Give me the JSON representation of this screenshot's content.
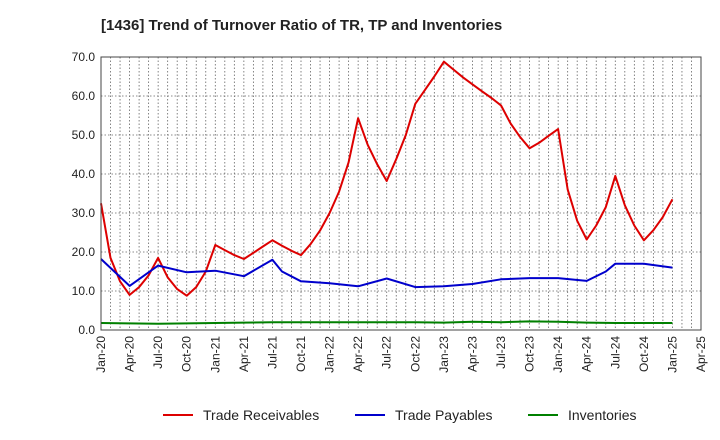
{
  "chart_data": {
    "type": "line",
    "title": "[1436]  Trend of Turnover Ratio of TR, TP and Inventories",
    "xlabel": "",
    "ylabel": "",
    "ylim": [
      0,
      70
    ],
    "yticks": [
      "0.0",
      "10.0",
      "20.0",
      "30.0",
      "40.0",
      "50.0",
      "60.0",
      "70.0"
    ],
    "xtick_labels": [
      "Jan-20",
      "Apr-20",
      "Jul-20",
      "Oct-20",
      "Jan-21",
      "Apr-21",
      "Jul-21",
      "Oct-21",
      "Jan-22",
      "Apr-22",
      "Jul-22",
      "Oct-22",
      "Jan-23",
      "Apr-23",
      "Jul-23",
      "Oct-23",
      "Jan-24",
      "Apr-24",
      "Jul-24",
      "Oct-24",
      "Jan-25",
      "Apr-25"
    ],
    "x_start": "Jan-20",
    "x_end": "Apr-25",
    "grid": true,
    "legend_position": "bottom",
    "series": [
      {
        "name": "Trade Receivables",
        "color": "#dd0000",
        "x": [
          "Jan-20",
          "Feb-20",
          "Mar-20",
          "Apr-20",
          "May-20",
          "Jun-20",
          "Jul-20",
          "Aug-20",
          "Sep-20",
          "Oct-20",
          "Nov-20",
          "Dec-20",
          "Jan-21",
          "Feb-21",
          "Mar-21",
          "Apr-21",
          "May-21",
          "Jun-21",
          "Jul-21",
          "Aug-21",
          "Sep-21",
          "Oct-21",
          "Nov-21",
          "Dec-21",
          "Jan-22",
          "Feb-22",
          "Mar-22",
          "Apr-22",
          "May-22",
          "Jun-22",
          "Jul-22",
          "Aug-22",
          "Sep-22",
          "Oct-22",
          "Nov-22",
          "Dec-22",
          "Jan-23",
          "Feb-23",
          "Mar-23",
          "Apr-23",
          "May-23",
          "Jun-23",
          "Jul-23",
          "Aug-23",
          "Sep-23",
          "Oct-23",
          "Nov-23",
          "Dec-23",
          "Jan-24",
          "Feb-24",
          "Mar-24",
          "Apr-24",
          "May-24",
          "Jun-24",
          "Jul-24",
          "Aug-24",
          "Sep-24",
          "Oct-24",
          "Nov-24",
          "Dec-24",
          "Jan-25"
        ],
        "values": [
          32.5,
          18.5,
          12.5,
          9.0,
          11.0,
          14.0,
          18.5,
          13.5,
          10.5,
          8.8,
          11.0,
          15.0,
          21.8,
          20.5,
          19.2,
          18.2,
          19.8,
          21.4,
          23.0,
          21.6,
          20.3,
          19.2,
          22.0,
          25.5,
          30.0,
          35.5,
          43.0,
          54.3,
          47.5,
          42.5,
          38.2,
          43.8,
          50.0,
          58.0,
          61.5,
          65.0,
          68.8,
          66.8,
          64.8,
          63.0,
          61.2,
          59.5,
          57.6,
          53.0,
          49.5,
          46.6,
          48.0,
          49.8,
          51.5,
          36.0,
          28.0,
          23.2,
          26.8,
          31.5,
          39.5,
          32.0,
          26.8,
          23.0,
          25.6,
          29.0,
          33.5
        ]
      },
      {
        "name": "Trade Payables",
        "color": "#0000cc",
        "x": [
          "Jan-20",
          "Apr-20",
          "Jul-20",
          "Oct-20",
          "Jan-21",
          "Apr-21",
          "Jul-21",
          "Aug-21",
          "Oct-21",
          "Jan-22",
          "Apr-22",
          "Jul-22",
          "Oct-22",
          "Jan-23",
          "Apr-23",
          "Jul-23",
          "Oct-23",
          "Jan-24",
          "Apr-24",
          "Jun-24",
          "Jul-24",
          "Oct-24",
          "Jan-25"
        ],
        "values": [
          18.2,
          11.3,
          16.5,
          14.8,
          15.2,
          13.8,
          18.0,
          15.0,
          12.5,
          12.0,
          11.2,
          13.2,
          11.0,
          11.2,
          11.8,
          13.0,
          13.3,
          13.3,
          12.6,
          15.0,
          17.0,
          17.0,
          16.0
        ]
      },
      {
        "name": "Inventories",
        "color": "#008000",
        "x": [
          "Jan-20",
          "Apr-20",
          "Jul-20",
          "Oct-20",
          "Jan-21",
          "Apr-21",
          "Jul-21",
          "Oct-21",
          "Jan-22",
          "Apr-22",
          "Jul-22",
          "Oct-22",
          "Jan-23",
          "Apr-23",
          "Jul-23",
          "Oct-23",
          "Jan-24",
          "Apr-24",
          "Jul-24",
          "Oct-24",
          "Jan-25"
        ],
        "values": [
          1.8,
          1.7,
          1.6,
          1.7,
          1.8,
          1.9,
          2.0,
          2.0,
          2.0,
          2.0,
          2.0,
          2.0,
          1.9,
          2.1,
          2.0,
          2.2,
          2.1,
          1.9,
          1.8,
          1.8,
          1.8
        ]
      }
    ]
  }
}
